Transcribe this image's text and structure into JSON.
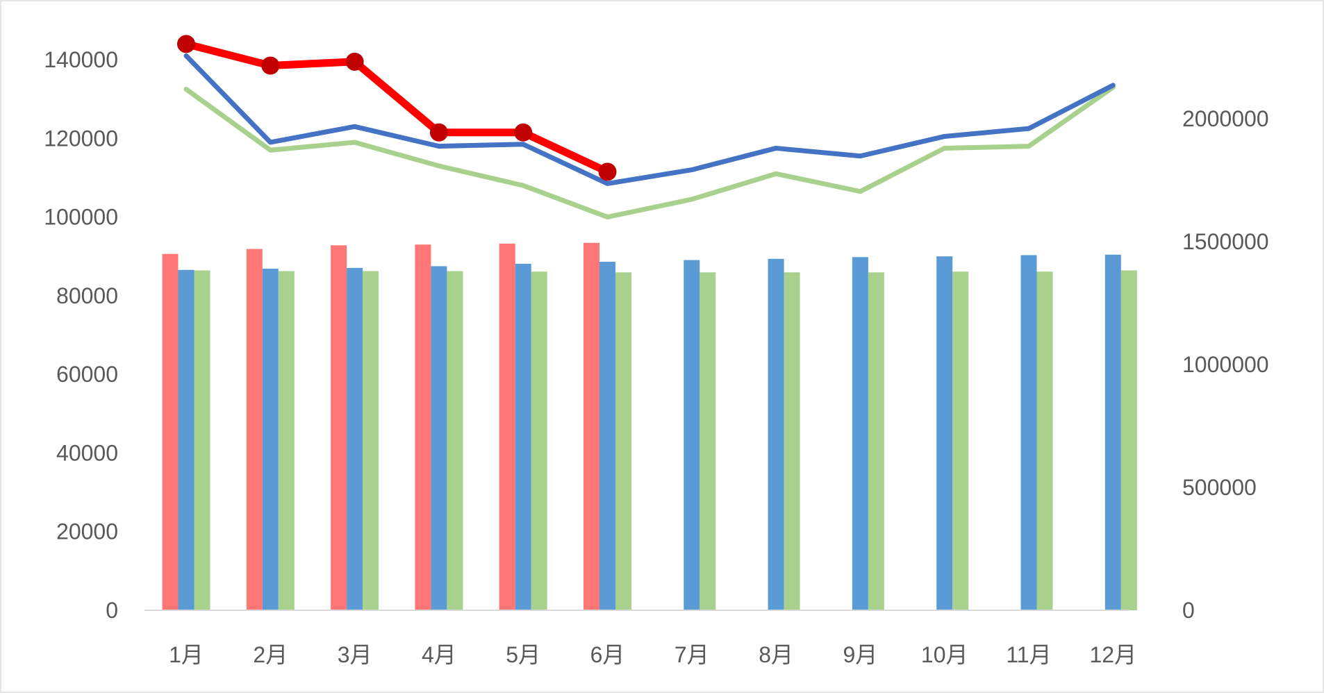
{
  "chart_data": {
    "type": "bar",
    "title": "",
    "xlabel": "",
    "ylabel": "",
    "categories": [
      "1月",
      "2月",
      "3月",
      "4月",
      "5月",
      "6月",
      "7月",
      "8月",
      "9月",
      "10月",
      "11月",
      "12月"
    ],
    "y_left": {
      "range": [
        0,
        140000
      ],
      "ticks": [
        0,
        20000,
        40000,
        60000,
        80000,
        100000,
        120000,
        140000
      ],
      "tick_labels": [
        "0",
        "20000",
        "40000",
        "60000",
        "80000",
        "100000",
        "120000",
        "140000"
      ]
    },
    "y_right": {
      "range": [
        0,
        2400000
      ],
      "ticks": [
        0,
        500000,
        1000000,
        1500000,
        2000000
      ],
      "tick_labels": [
        "0",
        "500000",
        "1000000",
        "1500000",
        "2000000"
      ]
    },
    "bar_series": [
      {
        "color": "#ff7676",
        "axis": "right",
        "values": [
          1450000,
          1470000,
          1485000,
          1488000,
          1492000,
          1495000,
          null,
          null,
          null,
          null,
          null,
          null
        ]
      },
      {
        "color": "#5b9bd5",
        "axis": "right",
        "values": [
          1385000,
          1390000,
          1393000,
          1400000,
          1410000,
          1418000,
          1425000,
          1430000,
          1437000,
          1440000,
          1445000,
          1447000
        ]
      },
      {
        "color": "#a9d18e",
        "axis": "right",
        "values": [
          1383000,
          1380000,
          1380000,
          1380000,
          1378000,
          1375000,
          1375000,
          1375000,
          1375000,
          1378000,
          1378000,
          1383000
        ]
      }
    ],
    "line_series": [
      {
        "color": "#ff0000",
        "axis": "left",
        "markers": true,
        "values": [
          144000,
          138500,
          139500,
          121500,
          121500,
          111500,
          null,
          null,
          null,
          null,
          null,
          null
        ]
      },
      {
        "color": "#4472c4",
        "axis": "left",
        "markers": false,
        "values": [
          141000,
          119000,
          123000,
          118000,
          118500,
          108500,
          112000,
          117500,
          115500,
          120500,
          122500,
          133500
        ]
      },
      {
        "color": "#a9d18e",
        "axis": "left",
        "markers": false,
        "values": [
          132500,
          117000,
          119000,
          113000,
          108000,
          100000,
          104500,
          111000,
          106500,
          117500,
          118000,
          133000
        ]
      }
    ],
    "grid": false,
    "legend": "none"
  }
}
